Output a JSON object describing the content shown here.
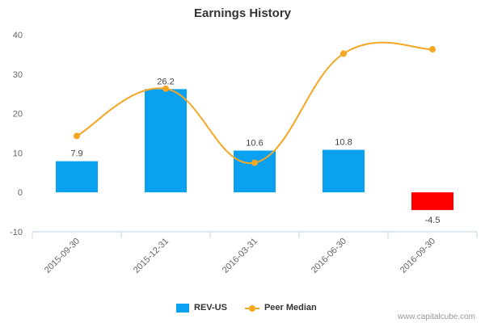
{
  "chart_data": {
    "type": "bar",
    "title": "Earnings History",
    "categories": [
      "2015-09-30",
      "2015-12-31",
      "2016-03-31",
      "2016-06-30",
      "2016-09-30"
    ],
    "series": [
      {
        "name": "REV-US",
        "type": "bar",
        "values": [
          7.9,
          26.2,
          10.6,
          10.8,
          -4.5
        ],
        "color": "#0aa1f0",
        "negative_color": "#ff0000",
        "data_labels": [
          "7.9",
          "26.2",
          "10.6",
          "10.8",
          "-4.5"
        ]
      },
      {
        "name": "Peer Median",
        "type": "line",
        "values": [
          14.3,
          26.3,
          7.5,
          35.2,
          36.3
        ],
        "color": "#f5a623"
      }
    ],
    "ylim": [
      -10,
      40
    ],
    "yticks": [
      -10,
      0,
      10,
      20,
      30,
      40
    ],
    "grid": false,
    "legend": "bottom-center"
  },
  "credit": "www.capitalcube.com"
}
